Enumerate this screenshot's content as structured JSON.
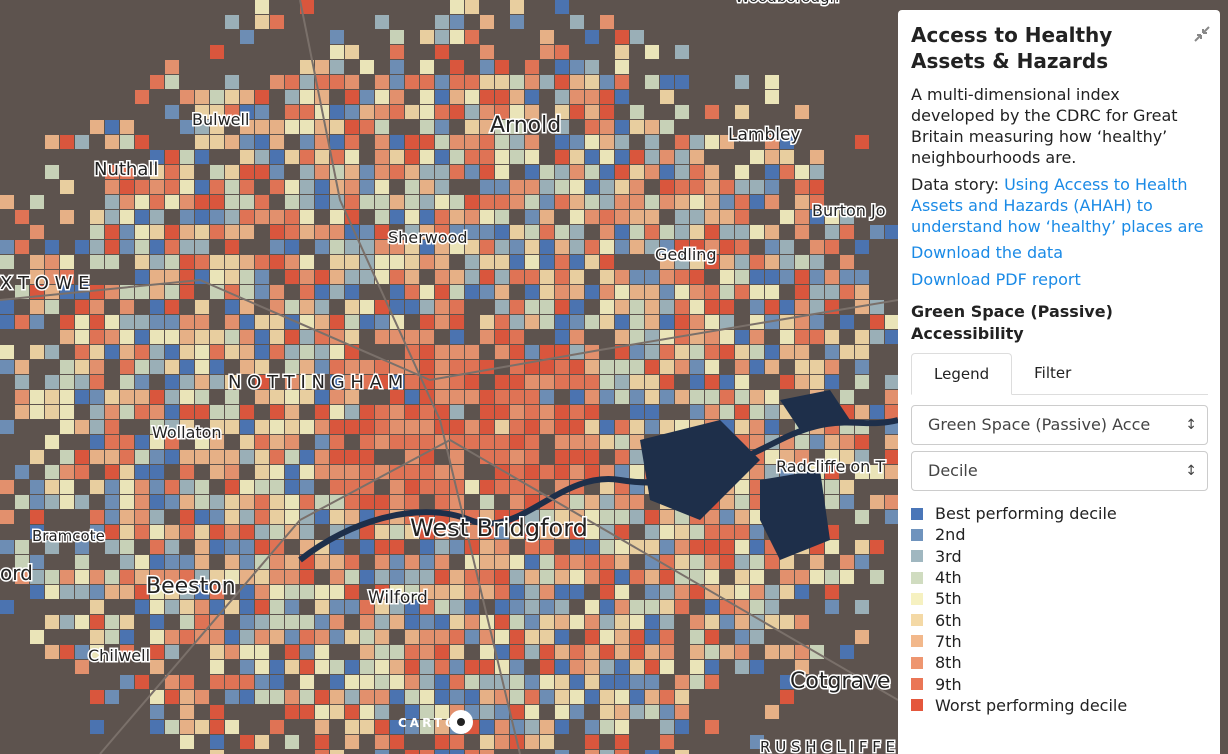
{
  "map": {
    "labels": [
      "Woodborough",
      "Bulwell",
      "Arnold",
      "Lambley",
      "Nuthall",
      "Burton Jo",
      "Sherwood",
      "Gedling",
      "X T O W E",
      "N O T T I N G H A M",
      "Wollaton",
      "Radcliffe on T",
      "Bramcote",
      "West Bridgford",
      "ord",
      "Beeston",
      "Wilford",
      "Chilwell",
      "Cotgrave",
      "R U S H C L I F F E"
    ],
    "attribution": "CARTO"
  },
  "panel": {
    "title": "Access to Healthy Assets & Hazards",
    "description": "A multi-dimensional index developed by the CDRC for Great Britain measuring how ‘healthy’ neighbourhoods are.",
    "story_prefix": "Data story:",
    "story_link": "Using Access to Health Assets and Hazards (AHAH) to understand how ‘healthy’ places are",
    "download_data": "Download the data",
    "download_pdf": "Download PDF report",
    "layer_title": "Green Space (Passive) Accessibility",
    "tabs": [
      "Legend",
      "Filter"
    ],
    "select_variable": "Green Space (Passive) Acce",
    "select_classification": "Decile",
    "legend": [
      {
        "label": "Best performing decile",
        "color": "#4a76b8"
      },
      {
        "label": "2nd",
        "color": "#6f93bd"
      },
      {
        "label": "3rd",
        "color": "#a0b7c0"
      },
      {
        "label": "4th",
        "color": "#d0dcc0"
      },
      {
        "label": "5th",
        "color": "#f6f1c1"
      },
      {
        "label": "6th",
        "color": "#f4d9a6"
      },
      {
        "label": "7th",
        "color": "#f2b88b"
      },
      {
        "label": "8th",
        "color": "#ee9670"
      },
      {
        "label": "9th",
        "color": "#ea7656"
      },
      {
        "label": "Worst performing decile",
        "color": "#e4573c"
      }
    ]
  }
}
